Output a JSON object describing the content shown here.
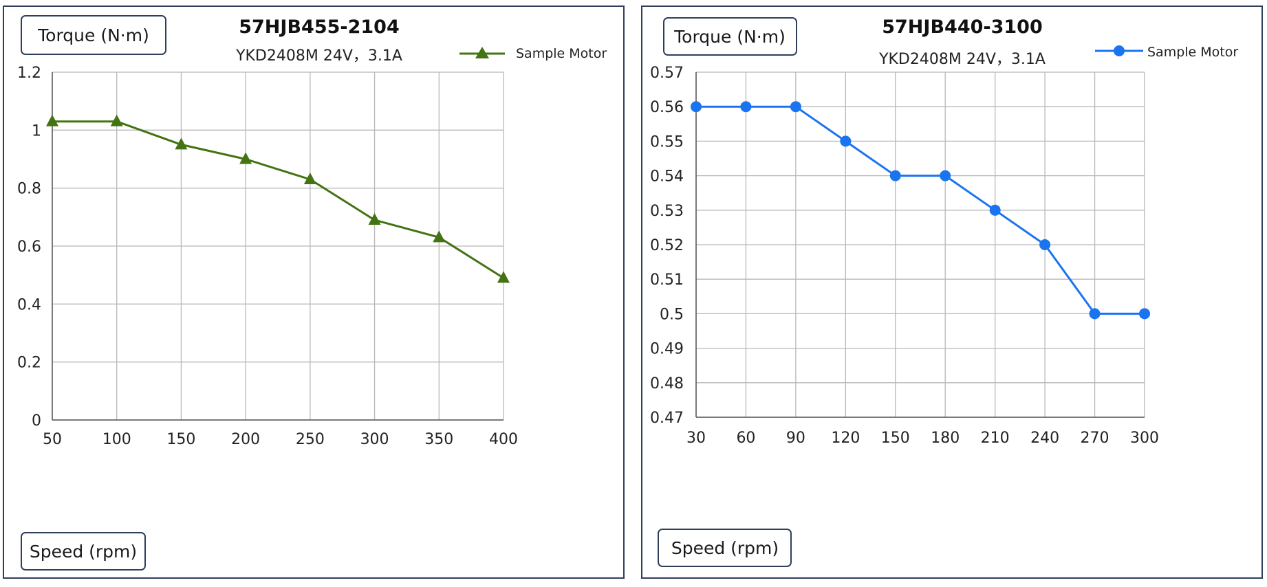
{
  "chart_data": [
    {
      "type": "line",
      "title": "57HJB455-2104",
      "subtitle": "YKD2408M 24V，3.1A",
      "ylabel": "Torque (N·m)",
      "xlabel": "Speed (rpm)",
      "x": [
        50,
        100,
        150,
        200,
        250,
        300,
        350,
        400
      ],
      "xlim": [
        50,
        400
      ],
      "ylim": [
        0,
        1.2
      ],
      "yticks": [
        "0",
        "0.2",
        "0.4",
        "0.6",
        "0.8",
        "1",
        "1.2"
      ],
      "xticks": [
        "50",
        "100",
        "150",
        "200",
        "250",
        "300",
        "350",
        "400"
      ],
      "grid": true,
      "legend_position": "top-right",
      "series": [
        {
          "name": "Sample Motor",
          "values": [
            1.03,
            1.03,
            0.95,
            0.9,
            0.83,
            0.69,
            0.63,
            0.49
          ],
          "color": "#437312",
          "marker": "triangle"
        }
      ]
    },
    {
      "type": "line",
      "title": "57HJB440-3100",
      "subtitle": "YKD2408M 24V，3.1A",
      "ylabel": "Torque (N·m)",
      "xlabel": "Speed (rpm)",
      "x": [
        30,
        60,
        90,
        120,
        150,
        180,
        210,
        240,
        270,
        300
      ],
      "xlim": [
        30,
        300
      ],
      "ylim": [
        0.47,
        0.57
      ],
      "yticks": [
        "0.47",
        "0.48",
        "0.49",
        "0.5",
        "0.51",
        "0.52",
        "0.53",
        "0.54",
        "0.55",
        "0.56",
        "0.57"
      ],
      "xticks": [
        "30",
        "60",
        "90",
        "120",
        "150",
        "180",
        "210",
        "240",
        "270",
        "300"
      ],
      "grid": true,
      "legend_position": "top-right",
      "series": [
        {
          "name": "Sample Motor",
          "values": [
            0.56,
            0.56,
            0.56,
            0.55,
            0.54,
            0.54,
            0.53,
            0.52,
            0.5,
            0.5
          ],
          "color": "#1a74f0",
          "marker": "circle"
        }
      ]
    }
  ]
}
